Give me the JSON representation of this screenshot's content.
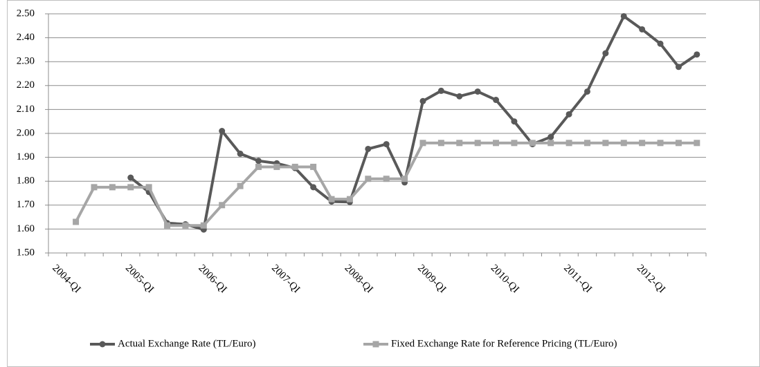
{
  "chart_data": {
    "type": "line",
    "categories": [
      null,
      "2004-QI",
      null,
      null,
      null,
      "2005-QI",
      null,
      null,
      null,
      "2006-QI",
      null,
      null,
      null,
      "2007-QI",
      null,
      null,
      null,
      "2008-QI",
      null,
      null,
      null,
      "2009-QI",
      null,
      null,
      null,
      "2010-QI",
      null,
      null,
      null,
      "2011-QI",
      null,
      null,
      null,
      "2012-QI",
      null,
      null
    ],
    "series": [
      {
        "name": "Actual Exchange Rate (TL/Euro)",
        "color": "#595959",
        "marker": "circle",
        "values": [
          null,
          null,
          null,
          null,
          1.815,
          1.755,
          1.625,
          1.62,
          1.598,
          2.01,
          1.915,
          1.885,
          1.875,
          1.855,
          1.775,
          1.715,
          1.713,
          1.935,
          1.955,
          1.795,
          2.135,
          2.178,
          2.155,
          2.175,
          2.14,
          2.05,
          1.955,
          1.985,
          2.08,
          2.175,
          2.335,
          2.49,
          2.435,
          2.375,
          2.278,
          2.33
        ]
      },
      {
        "name": "Fixed Exchange Rate for Reference Pricing (TL/Euro)",
        "color": "#a6a6a6",
        "marker": "square",
        "values": [
          null,
          1.63,
          1.775,
          1.775,
          1.775,
          1.775,
          1.615,
          1.615,
          1.615,
          1.7,
          1.78,
          1.86,
          1.86,
          1.86,
          1.86,
          1.725,
          1.725,
          1.81,
          1.81,
          1.81,
          1.96,
          1.96,
          1.96,
          1.96,
          1.96,
          1.96,
          1.96,
          1.96,
          1.96,
          1.96,
          1.96,
          1.96,
          1.96,
          1.96,
          1.96,
          1.96
        ]
      }
    ],
    "ylim": [
      1.5,
      2.5
    ],
    "yticks": [
      {
        "value": 1.5,
        "label": "1.50"
      },
      {
        "value": 1.6,
        "label": "1.60"
      },
      {
        "value": 1.7,
        "label": "1.70"
      },
      {
        "value": 1.8,
        "label": "1.80"
      },
      {
        "value": 1.9,
        "label": "1.90"
      },
      {
        "value": 2.0,
        "label": "2.00"
      },
      {
        "value": 2.1,
        "label": "2.10"
      },
      {
        "value": 2.2,
        "label": "2.20"
      },
      {
        "value": 2.3,
        "label": "2.30"
      },
      {
        "value": 2.4,
        "label": "2.40"
      },
      {
        "value": 2.5,
        "label": "2.50"
      }
    ],
    "grid": true,
    "legend": "bottom"
  }
}
